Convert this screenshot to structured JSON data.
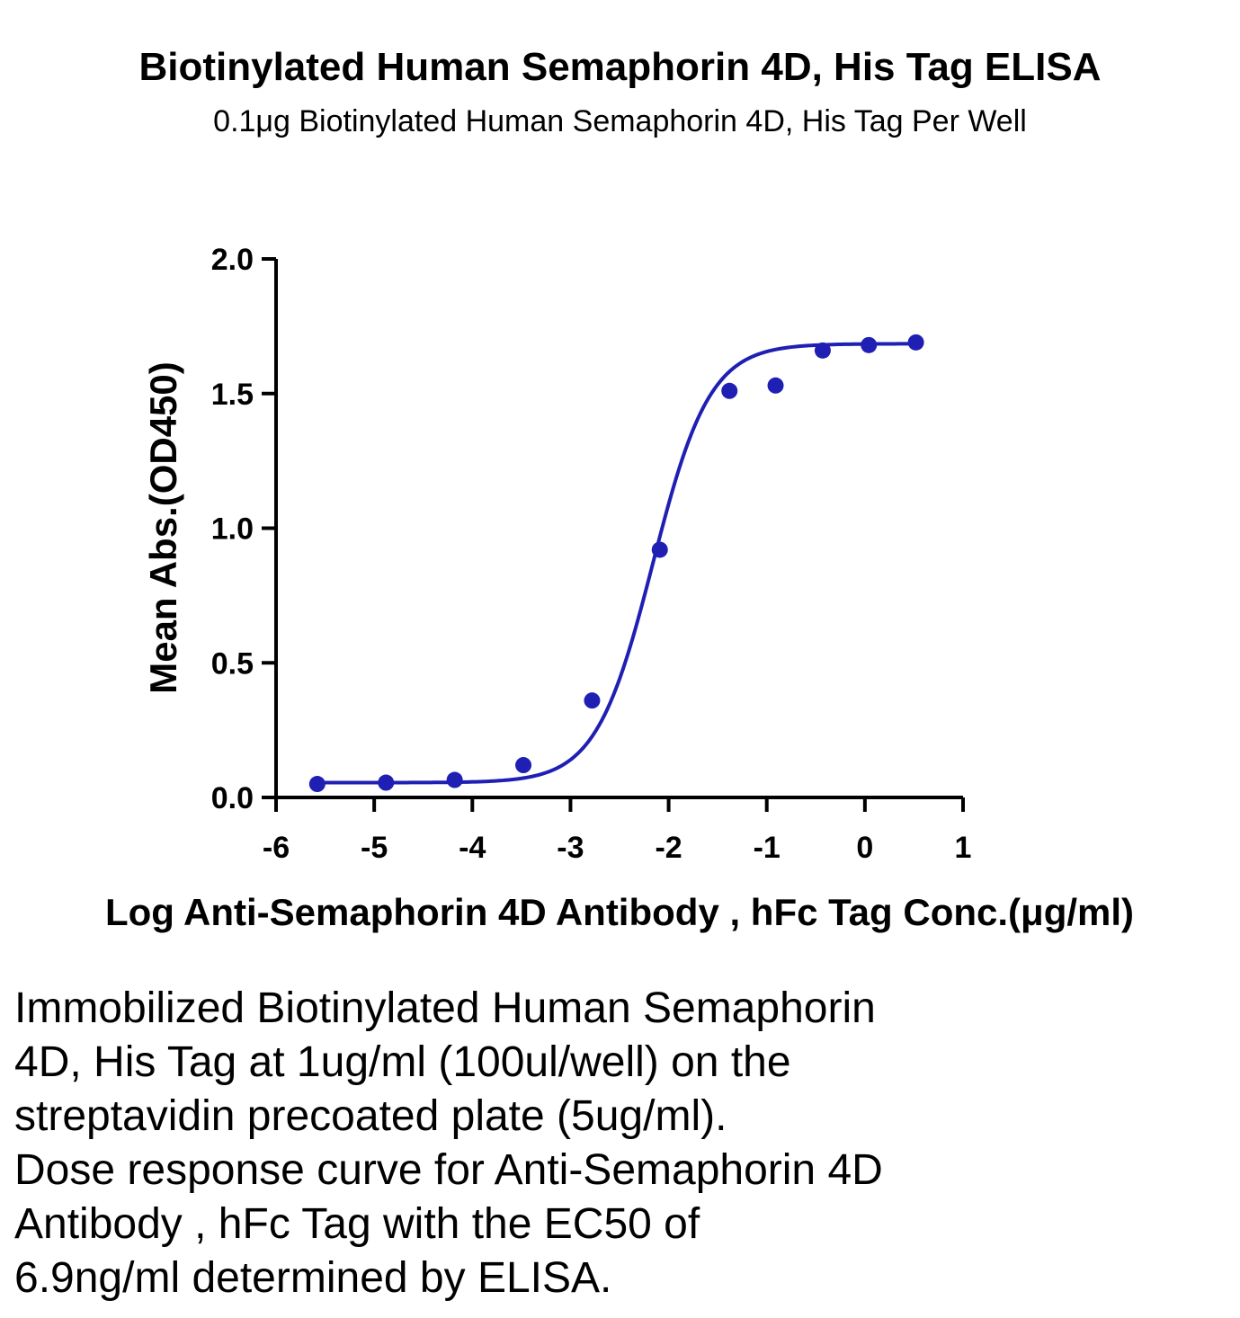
{
  "title": "Biotinylated Human Semaphorin 4D, His Tag ELISA",
  "subtitle": "0.1μg Biotinylated Human Semaphorin 4D, His Tag Per Well",
  "chart_data": {
    "type": "scatter",
    "title": "Biotinylated Human Semaphorin 4D, His Tag ELISA",
    "subtitle": "0.1μg Biotinylated Human Semaphorin 4D, His Tag Per Well",
    "xlabel": "Log Anti-Semaphorin 4D Antibody , hFc Tag Conc.(μg/ml)",
    "ylabel": "Mean Abs.(OD450)",
    "xlim": [
      -6,
      1
    ],
    "ylim": [
      0,
      2
    ],
    "xticks": [
      "-6",
      "-5",
      "-4",
      "-3",
      "-2",
      "-1",
      "0",
      "1"
    ],
    "yticks": [
      "0.0",
      "0.5",
      "1.0",
      "1.5",
      "2.0"
    ],
    "grid": false,
    "color": "#1f1fb4",
    "series": [
      {
        "x": [
          -5.58,
          -4.88,
          -4.18,
          -3.48,
          -2.78,
          -2.09,
          -1.38,
          -0.91,
          -0.43,
          0.04,
          0.52
        ],
        "y": [
          0.05,
          0.055,
          0.065,
          0.12,
          0.36,
          0.92,
          1.51,
          1.53,
          1.66,
          1.68,
          1.69
        ],
        "fit": {
          "model": "4PL",
          "bottom": 0.055,
          "top": 1.685,
          "logEC50": -2.16,
          "hill": 1.5
        }
      }
    ]
  },
  "caption": [
    "Immobilized Biotinylated Human Semaphorin",
    "4D, His Tag at 1ug/ml (100ul/well) on the",
    "streptavidin precoated plate (5ug/ml).",
    "Dose response curve for Anti-Semaphorin 4D",
    "Antibody , hFc Tag with the EC50 of",
    "6.9ng/ml determined by ELISA."
  ]
}
